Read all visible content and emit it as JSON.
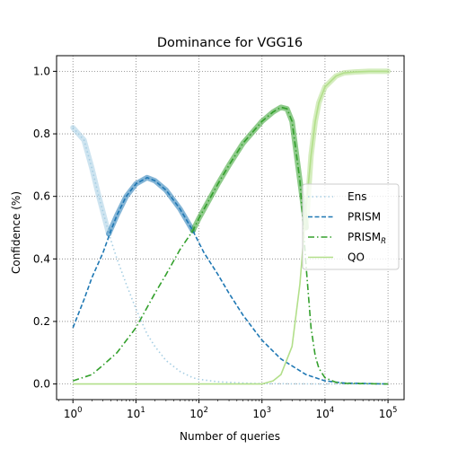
{
  "chart_data": {
    "type": "line",
    "title": "Dominance for VGG16",
    "xlabel": "Number of queries",
    "ylabel": "Confidence (%)",
    "xscale": "log",
    "xlim": [
      1,
      100000
    ],
    "ylim": [
      0,
      1.0
    ],
    "xticks": [
      {
        "value": 1,
        "base": "10",
        "exp": "0"
      },
      {
        "value": 10,
        "base": "10",
        "exp": "1"
      },
      {
        "value": 100,
        "base": "10",
        "exp": "2"
      },
      {
        "value": 1000,
        "base": "10",
        "exp": "3"
      },
      {
        "value": 10000,
        "base": "10",
        "exp": "4"
      },
      {
        "value": 100000,
        "base": "10",
        "exp": "5"
      }
    ],
    "yticks": [
      {
        "value": 0,
        "label": "0.0"
      },
      {
        "value": 0.2,
        "label": "0.2"
      },
      {
        "value": 0.4,
        "label": "0.4"
      },
      {
        "value": 0.6,
        "label": "0.6"
      },
      {
        "value": 0.8,
        "label": "0.8"
      },
      {
        "value": 1.0,
        "label": "1.0"
      }
    ],
    "grid": true,
    "legend_position": "center-right",
    "series": [
      {
        "name": "Ens",
        "style": "dotted",
        "color": "#a6cee3",
        "x": [
          1,
          1.5,
          2,
          2.5,
          3,
          4,
          5,
          7,
          10,
          15,
          20,
          30,
          50,
          80,
          100,
          200,
          500,
          1000,
          10000,
          100000
        ],
        "y": [
          0.82,
          0.78,
          0.69,
          0.61,
          0.55,
          0.46,
          0.4,
          0.32,
          0.24,
          0.16,
          0.12,
          0.075,
          0.04,
          0.02,
          0.015,
          0.007,
          0.003,
          0.001,
          0.0,
          0.0
        ]
      },
      {
        "name": "PRISM",
        "base": "PRISM",
        "sub": "",
        "style": "dashed",
        "color": "#1f78b4",
        "x": [
          1,
          1.5,
          2,
          3,
          4,
          5,
          7,
          10,
          15,
          20,
          30,
          50,
          80,
          120,
          200,
          300,
          500,
          1000,
          2000,
          5000,
          10000,
          20000,
          100000
        ],
        "y": [
          0.18,
          0.27,
          0.34,
          0.42,
          0.49,
          0.54,
          0.6,
          0.64,
          0.66,
          0.65,
          0.62,
          0.56,
          0.49,
          0.42,
          0.35,
          0.29,
          0.22,
          0.14,
          0.08,
          0.03,
          0.01,
          0.003,
          0.0
        ]
      },
      {
        "name": "PRISM_R",
        "base": "PRISM",
        "sub": "R",
        "style": "dashdot",
        "color": "#33a02c",
        "x": [
          1,
          2,
          3,
          5,
          10,
          20,
          30,
          50,
          80,
          100,
          200,
          300,
          500,
          1000,
          1500,
          2000,
          2500,
          3000,
          4000,
          5000,
          6000,
          7000,
          8000,
          10000,
          15000,
          20000,
          100000
        ],
        "y": [
          0.01,
          0.03,
          0.06,
          0.1,
          0.18,
          0.29,
          0.35,
          0.43,
          0.49,
          0.53,
          0.64,
          0.7,
          0.77,
          0.84,
          0.87,
          0.885,
          0.88,
          0.84,
          0.65,
          0.38,
          0.18,
          0.09,
          0.05,
          0.02,
          0.005,
          0.002,
          0.0
        ]
      },
      {
        "name": "QO",
        "style": "solid",
        "color": "#b2df8a",
        "x": [
          1,
          100,
          500,
          1000,
          1500,
          2000,
          3000,
          4000,
          5000,
          6000,
          7000,
          8000,
          10000,
          15000,
          20000,
          30000,
          50000,
          100000
        ],
        "y": [
          0.0,
          0.0,
          0.0,
          0.0,
          0.01,
          0.03,
          0.12,
          0.32,
          0.56,
          0.73,
          0.84,
          0.9,
          0.95,
          0.985,
          0.995,
          0.998,
          1.0,
          1.0
        ]
      }
    ],
    "dominant_envelope": [
      {
        "color": "#a6cee3",
        "x": [
          1,
          1.5,
          2,
          2.5,
          3,
          3.7
        ],
        "y": [
          0.82,
          0.78,
          0.69,
          0.61,
          0.55,
          0.48
        ]
      },
      {
        "color": "#1f78b4",
        "x": [
          3.7,
          5,
          7,
          10,
          15,
          20,
          30,
          50,
          80
        ],
        "y": [
          0.48,
          0.54,
          0.6,
          0.64,
          0.66,
          0.65,
          0.62,
          0.56,
          0.49
        ]
      },
      {
        "color": "#33a02c",
        "x": [
          80,
          100,
          200,
          300,
          500,
          1000,
          1500,
          2000,
          2500,
          3000,
          4000,
          5000
        ],
        "y": [
          0.49,
          0.53,
          0.64,
          0.7,
          0.77,
          0.84,
          0.87,
          0.885,
          0.88,
          0.84,
          0.65,
          0.5
        ]
      },
      {
        "color": "#b2df8a",
        "x": [
          5000,
          6000,
          7000,
          8000,
          10000,
          15000,
          20000,
          30000,
          50000,
          100000
        ],
        "y": [
          0.5,
          0.73,
          0.84,
          0.9,
          0.95,
          0.985,
          0.995,
          0.998,
          1.0,
          1.0
        ]
      }
    ]
  }
}
